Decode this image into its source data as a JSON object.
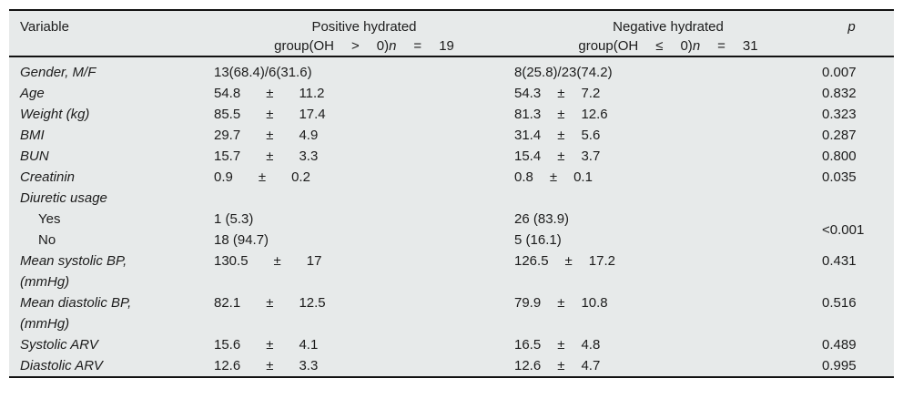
{
  "table": {
    "pm_sign": "±",
    "colors": {
      "panel_bg": "#e7eaea",
      "rule": "#121212",
      "text": "#1c1c1c"
    },
    "header": {
      "variable": "Variable",
      "p_label": "p",
      "group1": {
        "line1": "Positive hydrated",
        "line2": {
          "prefix": "group(OH",
          "op": ">",
          "zero": "0)",
          "n": "n",
          "eq": "=",
          "count": "19"
        }
      },
      "group2": {
        "line1": "Negative hydrated",
        "line2": {
          "prefix": "group(OH",
          "op": "≤",
          "zero": "0)",
          "n": "n",
          "eq": "=",
          "count": "31"
        }
      }
    },
    "rows": [
      {
        "variable": "Gender, M/F",
        "g1": {
          "text": "13(68.4)/6(31.6)"
        },
        "g2": {
          "text": "8(25.8)/23(74.2)"
        },
        "p": "0.007"
      },
      {
        "variable": "Age",
        "g1": {
          "mean": "54.8",
          "sd": "11.2"
        },
        "g2": {
          "mean": "54.3",
          "sd": "7.2"
        },
        "p": "0.832"
      },
      {
        "variable": "Weight (kg)",
        "g1": {
          "mean": "85.5",
          "sd": "17.4"
        },
        "g2": {
          "mean": "81.3",
          "sd": "12.6"
        },
        "p": "0.323"
      },
      {
        "variable": "BMI",
        "g1": {
          "mean": "29.7",
          "sd": "4.9"
        },
        "g2": {
          "mean": "31.4",
          "sd": "5.6"
        },
        "p": "0.287"
      },
      {
        "variable": "BUN",
        "g1": {
          "mean": "15.7",
          "sd": "3.3"
        },
        "g2": {
          "mean": "15.4",
          "sd": "3.7"
        },
        "p": "0.800"
      },
      {
        "variable": "Creatinin",
        "g1": {
          "mean": "0.9",
          "sd": "0.2"
        },
        "g2": {
          "mean": "0.8",
          "sd": "0.1"
        },
        "p": "0.035"
      },
      {
        "variable": "Diuretic usage",
        "g1": {
          "text": ""
        },
        "g2": {
          "text": ""
        },
        "p": ""
      },
      {
        "variable": "Yes",
        "indent": true,
        "g1": {
          "text": "1 (5.3)"
        },
        "g2": {
          "text": "26 (83.9)"
        },
        "p": "<0.001"
      },
      {
        "variable": "No",
        "indent": true,
        "g1": {
          "text": "18 (94.7)"
        },
        "g2": {
          "text": "5 (16.1)"
        }
      },
      {
        "variable": "Mean systolic BP,",
        "variable2": "(mmHg)",
        "g1": {
          "mean": "130.5",
          "sd": "17"
        },
        "g2": {
          "mean": "126.5",
          "sd": "17.2"
        },
        "p": "0.431"
      },
      {
        "variable": "Mean diastolic BP,",
        "variable2": "(mmHg)",
        "g1": {
          "mean": "82.1",
          "sd": "12.5"
        },
        "g2": {
          "mean": "79.9",
          "sd": "10.8"
        },
        "p": "0.516"
      },
      {
        "variable": "Systolic ARV",
        "g1": {
          "mean": "15.6",
          "sd": "4.1"
        },
        "g2": {
          "mean": "16.5",
          "sd": "4.8"
        },
        "p": "0.489"
      },
      {
        "variable": "Diastolic ARV",
        "g1": {
          "mean": "12.6",
          "sd": "3.3"
        },
        "g2": {
          "mean": "12.6",
          "sd": "4.7"
        },
        "p": "0.995"
      }
    ]
  }
}
